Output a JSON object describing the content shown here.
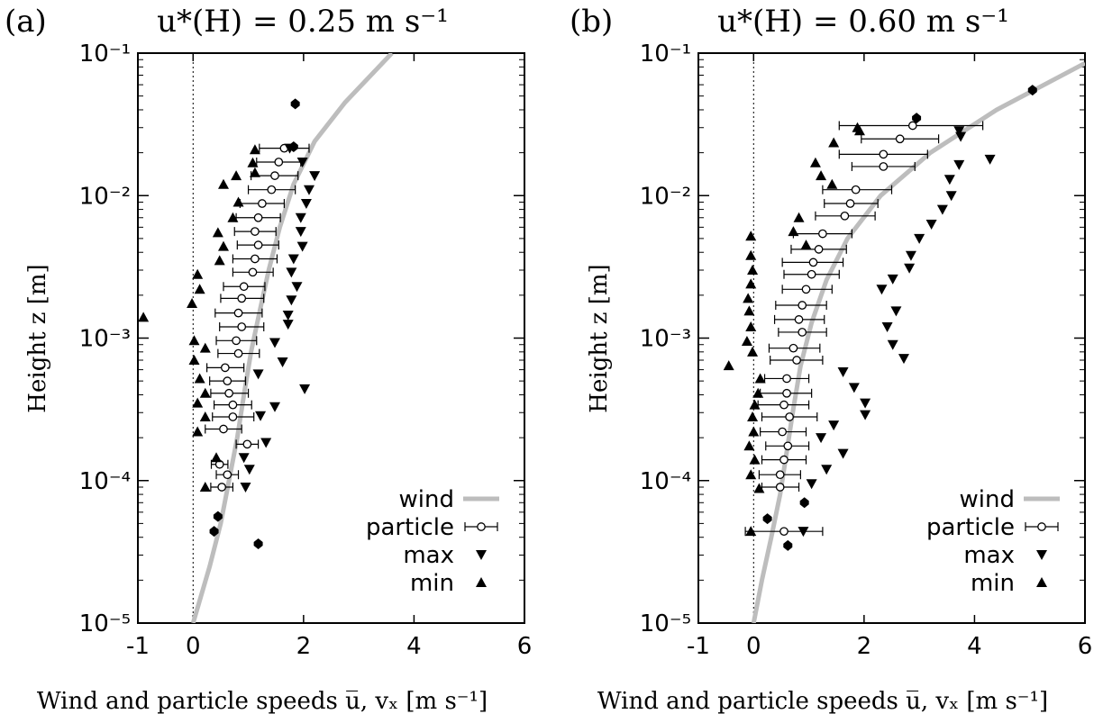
{
  "chart_data": [
    {
      "type": "scatter",
      "panel_label": "(a)",
      "title": "u*(H) = 0.25 m s⁻¹",
      "xlabel": "Wind and particle speeds u̅, vₓ [m s⁻¹]",
      "ylabel": "Height z [m]",
      "xlim": [
        -1,
        6
      ],
      "ylim": [
        1e-05,
        0.1
      ],
      "y_scale": "log",
      "x_ticks": [
        "-1",
        "0",
        "2",
        "4",
        "6"
      ],
      "y_ticks": [
        "10⁻⁵",
        "10⁻⁴",
        "10⁻³",
        "10⁻²",
        "10⁻¹"
      ],
      "legend": [
        "wind",
        "particle",
        "max",
        "min"
      ],
      "legend_position": "bottom-right",
      "zero_line": true,
      "wind": [
        [
          0,
          1e-05
        ],
        [
          0.3,
          2.5e-05
        ],
        [
          0.5,
          5e-05
        ],
        [
          0.65,
          0.0001
        ],
        [
          0.8,
          0.0002
        ],
        [
          0.92,
          0.0004
        ],
        [
          1.05,
          0.0008
        ],
        [
          1.2,
          0.0015
        ],
        [
          1.37,
          0.003
        ],
        [
          1.57,
          0.006
        ],
        [
          1.82,
          0.012
        ],
        [
          2.2,
          0.024
        ],
        [
          2.75,
          0.045
        ],
        [
          3.6,
          0.1
        ]
      ],
      "particle": [
        [
          0.52,
          9e-05,
          0.32,
          0.72
        ],
        [
          0.62,
          0.00011,
          0.42,
          0.82
        ],
        [
          0.48,
          0.00013,
          0.33,
          0.63
        ],
        [
          0.98,
          0.00018,
          0.78,
          1.18
        ],
        [
          0.55,
          0.00023,
          0.22,
          0.88
        ],
        [
          0.72,
          0.00028,
          0.35,
          1.1
        ],
        [
          0.72,
          0.00034,
          0.38,
          1.06
        ],
        [
          0.65,
          0.00041,
          0.32,
          1.0
        ],
        [
          0.62,
          0.0005,
          0.3,
          0.95
        ],
        [
          0.58,
          0.00062,
          0.25,
          0.92
        ],
        [
          0.82,
          0.00078,
          0.45,
          1.2
        ],
        [
          0.78,
          0.00096,
          0.42,
          1.15
        ],
        [
          0.88,
          0.0012,
          0.48,
          1.28
        ],
        [
          0.82,
          0.0015,
          0.4,
          1.25
        ],
        [
          0.88,
          0.0019,
          0.5,
          1.28
        ],
        [
          0.92,
          0.0023,
          0.55,
          1.3
        ],
        [
          1.08,
          0.0029,
          0.72,
          1.45
        ],
        [
          1.12,
          0.0036,
          0.72,
          1.52
        ],
        [
          1.18,
          0.0045,
          0.8,
          1.55
        ],
        [
          1.12,
          0.0056,
          0.75,
          1.5
        ],
        [
          1.18,
          0.007,
          0.78,
          1.58
        ],
        [
          1.25,
          0.0088,
          0.85,
          1.65
        ],
        [
          1.42,
          0.011,
          1.0,
          1.85
        ],
        [
          1.48,
          0.0138,
          1.05,
          1.9
        ],
        [
          1.55,
          0.0172,
          1.15,
          1.95
        ],
        [
          1.65,
          0.0215,
          1.2,
          2.1
        ]
      ],
      "max": [
        [
          0.95,
          9e-05
        ],
        [
          1.02,
          0.00012
        ],
        [
          0.92,
          0.000145
        ],
        [
          1.32,
          0.000185
        ],
        [
          1.22,
          0.000285
        ],
        [
          1.48,
          0.00033
        ],
        [
          2.02,
          0.00044
        ],
        [
          1.18,
          0.00056
        ],
        [
          1.62,
          0.00068
        ],
        [
          1.48,
          0.00093
        ],
        [
          1.72,
          0.00125
        ],
        [
          1.72,
          0.00145
        ],
        [
          1.78,
          0.00185
        ],
        [
          1.88,
          0.0023
        ],
        [
          1.78,
          0.0029
        ],
        [
          1.82,
          0.0036
        ],
        [
          1.98,
          0.0044
        ],
        [
          1.95,
          0.0056
        ],
        [
          1.95,
          0.007
        ],
        [
          2.05,
          0.0088
        ],
        [
          2.1,
          0.011
        ],
        [
          2.2,
          0.0138
        ],
        [
          1.98,
          0.0172
        ],
        [
          1.75,
          0.0215
        ]
      ],
      "min": [
        [
          0.22,
          9e-05
        ],
        [
          0.42,
          0.000145
        ],
        [
          0.08,
          0.00022
        ],
        [
          0.22,
          0.00028
        ],
        [
          0.08,
          0.00035
        ],
        [
          0.22,
          0.00041
        ],
        [
          0.12,
          0.00052
        ],
        [
          0.02,
          0.0007
        ],
        [
          0.22,
          0.00085
        ],
        [
          0.02,
          0.00096
        ],
        [
          -0.9,
          0.0014
        ],
        [
          -0.02,
          0.00175
        ],
        [
          0.12,
          0.0022
        ],
        [
          0.08,
          0.0028
        ],
        [
          0.48,
          0.0035
        ],
        [
          0.55,
          0.0044
        ],
        [
          0.45,
          0.0055
        ],
        [
          0.72,
          0.007
        ],
        [
          0.82,
          0.009
        ],
        [
          0.55,
          0.012
        ],
        [
          0.78,
          0.0138
        ],
        [
          1.12,
          0.0145
        ],
        [
          1.08,
          0.017
        ],
        [
          1.12,
          0.021
        ]
      ],
      "outliers": [
        [
          0.38,
          4.4e-05
        ],
        [
          0.45,
          5.6e-05
        ],
        [
          1.18,
          3.6e-05
        ],
        [
          1.82,
          0.022
        ],
        [
          1.85,
          0.044
        ]
      ]
    },
    {
      "type": "scatter",
      "panel_label": "(b)",
      "title": "u*(H) = 0.60 m s⁻¹",
      "xlabel": "Wind and particle speeds u̅, vₓ [m s⁻¹]",
      "ylabel": "Height z [m]",
      "xlim": [
        -1,
        6
      ],
      "ylim": [
        1e-05,
        0.1
      ],
      "y_scale": "log",
      "x_ticks": [
        "-1",
        "0",
        "2",
        "4",
        "6"
      ],
      "y_ticks": [
        "10⁻⁵",
        "10⁻⁴",
        "10⁻³",
        "10⁻²",
        "10⁻¹"
      ],
      "legend": [
        "wind",
        "particle",
        "max",
        "min"
      ],
      "legend_position": "bottom-right",
      "zero_line": true,
      "wind": [
        [
          0,
          1e-05
        ],
        [
          0.15,
          2e-05
        ],
        [
          0.32,
          4e-05
        ],
        [
          0.48,
          8e-05
        ],
        [
          0.6,
          0.00016
        ],
        [
          0.72,
          0.00032
        ],
        [
          0.85,
          0.00064
        ],
        [
          1.05,
          0.00128
        ],
        [
          1.32,
          0.00256
        ],
        [
          1.7,
          0.005
        ],
        [
          2.3,
          0.01
        ],
        [
          3.2,
          0.02
        ],
        [
          4.4,
          0.04
        ],
        [
          6.0,
          0.085
        ]
      ],
      "particle": [
        [
          0.55,
          4.4e-05,
          -0.15,
          1.25
        ],
        [
          0.48,
          9e-05,
          0.15,
          0.82
        ],
        [
          0.48,
          0.00011,
          0.1,
          0.85
        ],
        [
          0.55,
          0.00014,
          0.15,
          0.95
        ],
        [
          0.62,
          0.000175,
          0.22,
          1.0
        ],
        [
          0.52,
          0.00022,
          0.12,
          0.95
        ],
        [
          0.65,
          0.00028,
          0.15,
          1.15
        ],
        [
          0.55,
          0.00034,
          0.08,
          1.0
        ],
        [
          0.6,
          0.00041,
          0.12,
          1.05
        ],
        [
          0.6,
          0.00052,
          0.2,
          1.0
        ],
        [
          0.78,
          0.0007,
          0.3,
          1.25
        ],
        [
          0.72,
          0.00085,
          0.28,
          1.2
        ],
        [
          0.88,
          0.0011,
          0.45,
          1.32
        ],
        [
          0.82,
          0.00135,
          0.38,
          1.28
        ],
        [
          0.88,
          0.0017,
          0.4,
          1.32
        ],
        [
          0.95,
          0.0022,
          0.52,
          1.42
        ],
        [
          1.05,
          0.0028,
          0.55,
          1.55
        ],
        [
          1.08,
          0.0034,
          0.52,
          1.62
        ],
        [
          1.18,
          0.0042,
          0.68,
          1.68
        ],
        [
          1.25,
          0.0054,
          0.72,
          1.78
        ],
        [
          1.65,
          0.0072,
          1.12,
          2.2
        ],
        [
          1.75,
          0.0088,
          1.28,
          2.25
        ],
        [
          1.85,
          0.011,
          1.25,
          2.5
        ],
        [
          2.35,
          0.016,
          1.78,
          2.92
        ],
        [
          2.35,
          0.0195,
          1.55,
          3.15
        ],
        [
          2.65,
          0.025,
          1.95,
          3.35
        ],
        [
          2.88,
          0.031,
          1.55,
          4.15
        ]
      ],
      "max": [
        [
          0.9,
          4.4e-05
        ],
        [
          1.05,
          9.5e-05
        ],
        [
          1.32,
          0.00012
        ],
        [
          1.62,
          0.000155
        ],
        [
          1.22,
          0.0002
        ],
        [
          1.45,
          0.000245
        ],
        [
          2.02,
          0.00029
        ],
        [
          2.02,
          0.00035
        ],
        [
          1.82,
          0.00045
        ],
        [
          1.62,
          0.00058
        ],
        [
          2.72,
          0.00072
        ],
        [
          2.52,
          0.0009
        ],
        [
          2.42,
          0.0012
        ],
        [
          2.58,
          0.00155
        ],
        [
          2.32,
          0.0022
        ],
        [
          2.52,
          0.0026
        ],
        [
          2.82,
          0.0031
        ],
        [
          2.85,
          0.0038
        ],
        [
          3.0,
          0.005
        ],
        [
          3.22,
          0.0063
        ],
        [
          3.42,
          0.008
        ],
        [
          3.58,
          0.01
        ],
        [
          3.55,
          0.013
        ],
        [
          3.72,
          0.0165
        ],
        [
          4.28,
          0.018
        ],
        [
          3.75,
          0.026
        ],
        [
          3.72,
          0.0285
        ]
      ],
      "min": [
        [
          -0.05,
          4.4e-05
        ],
        [
          0.1,
          8.8e-05
        ],
        [
          -0.05,
          0.00011
        ],
        [
          0.02,
          0.00014
        ],
        [
          -0.08,
          0.000175
        ],
        [
          0.0,
          0.00022
        ],
        [
          -0.02,
          0.00028
        ],
        [
          0.02,
          0.00034
        ],
        [
          0.08,
          0.00041
        ],
        [
          0.12,
          0.00052
        ],
        [
          -0.45,
          0.00064
        ],
        [
          -0.02,
          0.0008
        ],
        [
          -0.12,
          0.00095
        ],
        [
          -0.05,
          0.0012
        ],
        [
          -0.08,
          0.00155
        ],
        [
          -0.1,
          0.0019
        ],
        [
          -0.05,
          0.0024
        ],
        [
          -0.02,
          0.003
        ],
        [
          -0.05,
          0.0038
        ],
        [
          -0.05,
          0.0052
        ],
        [
          0.72,
          0.0056
        ],
        [
          0.95,
          0.0045
        ],
        [
          0.82,
          0.007
        ],
        [
          1.22,
          0.0138
        ],
        [
          1.42,
          0.012
        ],
        [
          1.12,
          0.017
        ],
        [
          1.45,
          0.0235
        ],
        [
          1.92,
          0.0285
        ],
        [
          1.88,
          0.03
        ]
      ],
      "outliers": [
        [
          0.62,
          3.5e-05
        ],
        [
          0.25,
          5.4e-05
        ],
        [
          0.92,
          7e-05
        ],
        [
          2.95,
          0.035
        ],
        [
          5.05,
          0.055
        ]
      ]
    }
  ]
}
